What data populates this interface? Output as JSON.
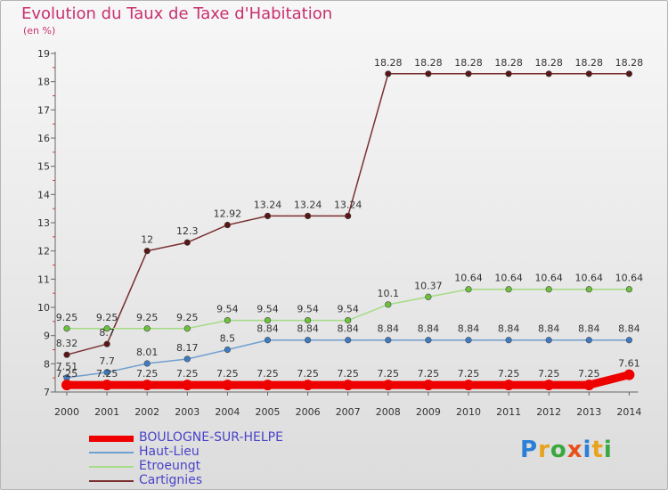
{
  "header": {
    "title": "Evolution du Taux de Taxe d'Habitation",
    "unit": "(en %)"
  },
  "logo": {
    "text": "Proxiti",
    "colors": [
      "#2a7fd6",
      "#e8a21b",
      "#38a83f",
      "#e8501b",
      "#2a7fd6",
      "#e8a21b",
      "#38a83f"
    ]
  },
  "chart_data": {
    "type": "line",
    "title": "Evolution du Taux de Taxe d'Habitation",
    "ylabel": "(en %)",
    "xlabel": "",
    "x": [
      "2000",
      "2001",
      "2002",
      "2003",
      "2004",
      "2005",
      "2006",
      "2007",
      "2008",
      "2009",
      "2010",
      "2011",
      "2012",
      "2013",
      "2014"
    ],
    "ylim": [
      7,
      19
    ],
    "yticks": [
      "7",
      "8",
      "9",
      "10",
      "11",
      "12",
      "13",
      "14",
      "15",
      "16",
      "17",
      "18",
      "19"
    ],
    "grid": false,
    "legend_position": "bottom-left",
    "series": [
      {
        "name": "BOULOGNE-SUR-HELPE",
        "color": "#ee0000",
        "values": [
          7.25,
          7.25,
          7.25,
          7.25,
          7.25,
          7.25,
          7.25,
          7.25,
          7.25,
          7.25,
          7.25,
          7.25,
          7.25,
          7.25,
          7.61
        ],
        "labels": [
          "7.25",
          "7.25",
          "7.25",
          "7.25",
          "7.25",
          "7.25",
          "7.25",
          "7.25",
          "7.25",
          "7.25",
          "7.25",
          "7.25",
          "7.25",
          "7.25",
          "7.61"
        ],
        "thick": true
      },
      {
        "name": "Haut-Lieu",
        "color": "#6f9fd0",
        "marker": "#3d7cc4",
        "values": [
          7.51,
          7.7,
          8.01,
          8.17,
          8.5,
          8.84,
          8.84,
          8.84,
          8.84,
          8.84,
          8.84,
          8.84,
          8.84,
          8.84,
          8.84
        ],
        "labels": [
          "7.51",
          "7.7",
          "8.01",
          "8.17",
          "8.5",
          "8.84",
          "8.84",
          "8.84",
          "8.84",
          "8.84",
          "8.84",
          "8.84",
          "8.84",
          "8.84",
          "8.84"
        ]
      },
      {
        "name": "Etroeungt",
        "color": "#a5dc84",
        "marker": "#6bc23c",
        "values": [
          9.25,
          9.25,
          9.25,
          9.25,
          9.54,
          9.54,
          9.54,
          9.54,
          10.1,
          10.37,
          10.64,
          10.64,
          10.64,
          10.64,
          10.64
        ],
        "labels": [
          "9.25",
          "9.25",
          "9.25",
          "9.25",
          "9.54",
          "9.54",
          "9.54",
          "9.54",
          "10.1",
          "10.37",
          "10.64",
          "10.64",
          "10.64",
          "10.64",
          "10.64"
        ]
      },
      {
        "name": "Cartignies",
        "color": "#7a2f2f",
        "marker": "#5a1515",
        "values": [
          8.32,
          8.7,
          12,
          12.3,
          12.92,
          13.24,
          13.24,
          13.24,
          18.28,
          18.28,
          18.28,
          18.28,
          18.28,
          18.28,
          18.28
        ],
        "labels": [
          "8.32",
          "8.7",
          "12",
          "12.3",
          "12.92",
          "13.24",
          "13.24",
          "13.24",
          "18.28",
          "18.28",
          "18.28",
          "18.28",
          "18.28",
          "18.28",
          "18.28"
        ]
      }
    ]
  }
}
